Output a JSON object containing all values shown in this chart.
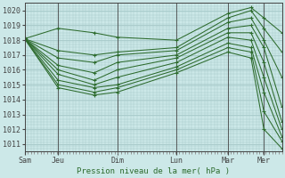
{
  "xlabel": "Pression niveau de la mer( hPa )",
  "bg_color": "#cce8e8",
  "grid_color": "#aacccc",
  "line_color": "#2d6b2d",
  "ylim": [
    1010.5,
    1020.5
  ],
  "yticks": [
    1011,
    1012,
    1013,
    1014,
    1015,
    1016,
    1017,
    1018,
    1019,
    1020
  ],
  "day_positions": [
    0.0,
    0.13,
    0.36,
    0.59,
    0.79,
    0.93
  ],
  "day_labels": [
    "Sam",
    "Jeu",
    "Dim",
    "Lun",
    "Mar",
    "Mer"
  ],
  "lines": [
    {
      "x": [
        0.0,
        0.13,
        0.27,
        0.36,
        0.59,
        0.79,
        0.88,
        0.93,
        1.0
      ],
      "y": [
        1018.1,
        1018.8,
        1018.5,
        1018.2,
        1018.0,
        1019.8,
        1020.2,
        1019.5,
        1018.5
      ]
    },
    {
      "x": [
        0.0,
        0.13,
        0.27,
        0.36,
        0.59,
        0.79,
        0.88,
        0.93,
        1.0
      ],
      "y": [
        1018.1,
        1017.3,
        1017.0,
        1017.2,
        1017.5,
        1019.5,
        1020.0,
        1018.8,
        1017.2
      ]
    },
    {
      "x": [
        0.0,
        0.13,
        0.27,
        0.36,
        0.59,
        0.79,
        0.88,
        0.93,
        1.0
      ],
      "y": [
        1018.1,
        1016.8,
        1016.5,
        1017.0,
        1017.3,
        1019.2,
        1019.5,
        1018.0,
        1015.5
      ]
    },
    {
      "x": [
        0.0,
        0.13,
        0.27,
        0.36,
        0.59,
        0.79,
        0.88,
        0.93,
        1.0
      ],
      "y": [
        1018.1,
        1016.3,
        1015.8,
        1016.5,
        1017.0,
        1018.8,
        1019.0,
        1017.5,
        1013.5
      ]
    },
    {
      "x": [
        0.0,
        0.13,
        0.27,
        0.36,
        0.59,
        0.79,
        0.88,
        0.93,
        1.0
      ],
      "y": [
        1018.1,
        1016.0,
        1015.3,
        1016.0,
        1016.8,
        1018.5,
        1018.5,
        1016.5,
        1012.5
      ]
    },
    {
      "x": [
        0.0,
        0.13,
        0.27,
        0.36,
        0.59,
        0.79,
        0.88,
        0.93,
        1.0
      ],
      "y": [
        1018.1,
        1015.7,
        1015.0,
        1015.5,
        1016.5,
        1018.2,
        1018.0,
        1015.5,
        1012.0
      ]
    },
    {
      "x": [
        0.0,
        0.13,
        0.27,
        0.36,
        0.59,
        0.79,
        0.88,
        0.93,
        1.0
      ],
      "y": [
        1018.1,
        1015.3,
        1014.8,
        1015.0,
        1016.2,
        1017.8,
        1017.5,
        1014.5,
        1011.5
      ]
    },
    {
      "x": [
        0.0,
        0.13,
        0.27,
        0.36,
        0.59,
        0.79,
        0.88,
        0.93,
        1.0
      ],
      "y": [
        1018.1,
        1015.0,
        1014.5,
        1014.8,
        1016.0,
        1017.5,
        1017.2,
        1013.2,
        1011.2
      ]
    },
    {
      "x": [
        0.0,
        0.13,
        0.27,
        0.36,
        0.59,
        0.79,
        0.88,
        0.93,
        1.0
      ],
      "y": [
        1018.1,
        1014.8,
        1014.3,
        1014.5,
        1015.8,
        1017.2,
        1016.8,
        1012.0,
        1010.7
      ]
    }
  ]
}
